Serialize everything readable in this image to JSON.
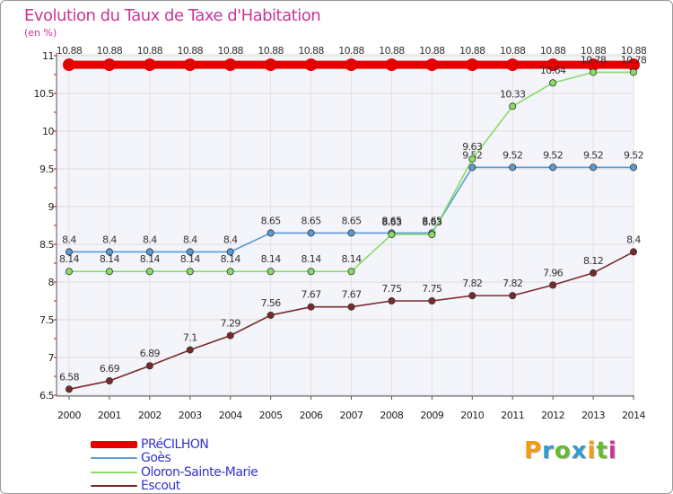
{
  "chart_data": {
    "type": "line",
    "title": "Evolution du Taux de Taxe d'Habitation",
    "subtitle": "(en %)",
    "x": [
      "2000",
      "2001",
      "2002",
      "2003",
      "2004",
      "2005",
      "2006",
      "2007",
      "2008",
      "2009",
      "2010",
      "2011",
      "2012",
      "2013",
      "2014"
    ],
    "ylim": [
      6.5,
      11
    ],
    "yticks": [
      "6.5",
      "7",
      "7.5",
      "8",
      "8.5",
      "9",
      "9.5",
      "10",
      "10.5",
      "11"
    ],
    "grid": true,
    "legend": "bottom-left",
    "series": [
      {
        "name": "PRéCILHON",
        "color": "#e50000",
        "values": [
          10.88,
          10.88,
          10.88,
          10.88,
          10.88,
          10.88,
          10.88,
          10.88,
          10.88,
          10.88,
          10.88,
          10.88,
          10.88,
          10.88,
          10.88
        ],
        "labels": [
          "10.88",
          "10.88",
          "10.88",
          "10.88",
          "10.88",
          "10.88",
          "10.88",
          "10.88",
          "10.88",
          "10.88",
          "10.88",
          "10.88",
          "10.88",
          "10.88",
          "10.88"
        ]
      },
      {
        "name": "Goès",
        "color": "#5a9bd4",
        "values": [
          8.4,
          8.4,
          8.4,
          8.4,
          8.4,
          8.65,
          8.65,
          8.65,
          8.65,
          8.65,
          9.52,
          9.52,
          9.52,
          9.52,
          9.52
        ],
        "labels": [
          "8.4",
          "8.4",
          "8.4",
          "8.4",
          "8.4",
          "8.65",
          "8.65",
          "8.65",
          "8.65",
          "8.65",
          "9.52",
          "9.52",
          "9.52",
          "9.52",
          "9.52"
        ]
      },
      {
        "name": "Oloron-Sainte-Marie",
        "color": "#88dd66",
        "values": [
          8.14,
          8.14,
          8.14,
          8.14,
          8.14,
          8.14,
          8.14,
          8.14,
          8.63,
          8.63,
          9.63,
          10.33,
          10.64,
          10.78,
          10.78
        ],
        "labels": [
          "8.14",
          "8.14",
          "8.14",
          "8.14",
          "8.14",
          "8.14",
          "8.14",
          "8.14",
          "8.63",
          "8.63",
          "9.63",
          "10.33",
          "10.64",
          "10.78",
          "10.78"
        ]
      },
      {
        "name": "Escout",
        "color": "#7a2a2a",
        "values": [
          6.58,
          6.69,
          6.89,
          7.1,
          7.29,
          7.56,
          7.67,
          7.67,
          7.75,
          7.75,
          7.82,
          7.82,
          7.96,
          8.12,
          8.4
        ],
        "labels": [
          "6.58",
          "6.69",
          "6.89",
          "7.1",
          "7.29",
          "7.56",
          "7.67",
          "7.67",
          "7.75",
          "7.75",
          "7.82",
          "7.82",
          "7.96",
          "8.12",
          "8.4"
        ]
      }
    ]
  },
  "logo": {
    "letters": [
      "P",
      "r",
      "o",
      "x",
      "i",
      "t",
      "i"
    ],
    "colors": [
      "#f39c12",
      "#3399cc",
      "#66bb33",
      "#3399cc",
      "#f39c12",
      "#66bb33",
      "#cc3399"
    ]
  }
}
